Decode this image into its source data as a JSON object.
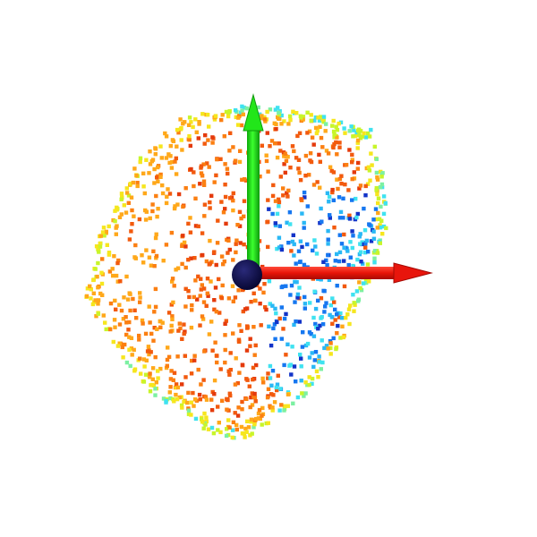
{
  "scene": {
    "background": "#ffffff",
    "content": "3d-point-cloud-with-coordinate-axes",
    "colormap": "jet",
    "point_count_estimate": 1300
  },
  "axes": {
    "x_axis_color": "#e8150c",
    "y_axis_color": "#14e610",
    "origin_sphere_color": "#0b0b4a",
    "x_axis_icon": "red-arrow",
    "y_axis_icon": "green-arrow",
    "origin_icon": "dark-blue-sphere"
  },
  "palette": {
    "deep_red": "#e43a0c",
    "orange_red": "#f25a0e",
    "orange": "#fb7f12",
    "amber": "#ffa81a",
    "yellow": "#f6e61e",
    "yellow_green": "#c8f52a",
    "green_cyan": "#7cf0a2",
    "cyan": "#3fe2f0",
    "sky": "#2ab8f5",
    "blue": "#1677f0",
    "deep_blue": "#1233c8"
  }
}
